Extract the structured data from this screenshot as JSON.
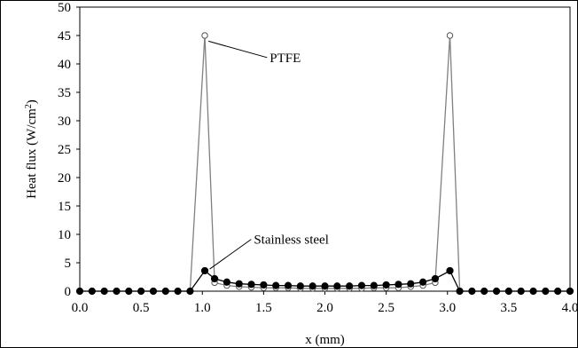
{
  "chart_data": {
    "type": "line",
    "title": "",
    "xlabel": "x (mm)",
    "ylabel": "Heat flux (W/cm",
    "ylabel_sup": "2",
    "ylabel_close": ")",
    "xlim": [
      0,
      4
    ],
    "ylim": [
      0,
      50
    ],
    "x_ticks": [
      "0.0",
      "0.5",
      "1.0",
      "1.5",
      "2.0",
      "2.5",
      "3.0",
      "3.5",
      "4.0"
    ],
    "y_ticks": [
      "0",
      "5",
      "10",
      "15",
      "20",
      "25",
      "30",
      "35",
      "40",
      "45",
      "50"
    ],
    "grid": false,
    "legend": "none",
    "series": [
      {
        "name": "PTFE",
        "marker": "open-circle",
        "x": [
          0,
          0.1,
          0.2,
          0.3,
          0.4,
          0.5,
          0.6,
          0.7,
          0.8,
          0.9,
          1.02,
          1.1,
          1.2,
          1.3,
          1.4,
          1.5,
          1.6,
          1.7,
          1.8,
          1.9,
          2.0,
          2.1,
          2.2,
          2.3,
          2.4,
          2.5,
          2.6,
          2.7,
          2.8,
          2.9,
          3.02,
          3.1,
          3.2,
          3.3,
          3.4,
          3.5,
          3.6,
          3.7,
          3.8,
          3.9,
          4.0
        ],
        "y": [
          0,
          0,
          0,
          0,
          0,
          0,
          0,
          0,
          0,
          0,
          45,
          1.5,
          1.0,
          0.8,
          0.7,
          0.6,
          0.6,
          0.6,
          0.5,
          0.5,
          0.5,
          0.5,
          0.5,
          0.5,
          0.6,
          0.6,
          0.6,
          0.8,
          1.0,
          1.5,
          45,
          0,
          0,
          0,
          0,
          0,
          0,
          0,
          0,
          0,
          0
        ]
      },
      {
        "name": "Stainless steel",
        "marker": "filled-circle",
        "x": [
          0,
          0.1,
          0.2,
          0.3,
          0.4,
          0.5,
          0.6,
          0.7,
          0.8,
          0.9,
          1.02,
          1.1,
          1.2,
          1.3,
          1.4,
          1.5,
          1.6,
          1.7,
          1.8,
          1.9,
          2.0,
          2.1,
          2.2,
          2.3,
          2.4,
          2.5,
          2.6,
          2.7,
          2.8,
          2.9,
          3.02,
          3.1,
          3.2,
          3.3,
          3.4,
          3.5,
          3.6,
          3.7,
          3.8,
          3.9,
          4.0
        ],
        "y": [
          0,
          0,
          0,
          0,
          0,
          0,
          0,
          0,
          0,
          0,
          3.6,
          2.2,
          1.6,
          1.3,
          1.2,
          1.1,
          1.0,
          1.0,
          0.9,
          0.9,
          0.9,
          0.9,
          0.9,
          1.0,
          1.0,
          1.1,
          1.2,
          1.3,
          1.6,
          2.2,
          3.6,
          0,
          0,
          0,
          0,
          0,
          0,
          0,
          0,
          0,
          0
        ]
      }
    ],
    "annotations": [
      {
        "text": "PTFE",
        "x": 1.55,
        "y": 40.5,
        "arrow_to": [
          1.05,
          44
        ]
      },
      {
        "text": "Stainless steel",
        "x": 1.42,
        "y": 8.5,
        "arrow_to": [
          1.06,
          3.9
        ]
      }
    ]
  }
}
